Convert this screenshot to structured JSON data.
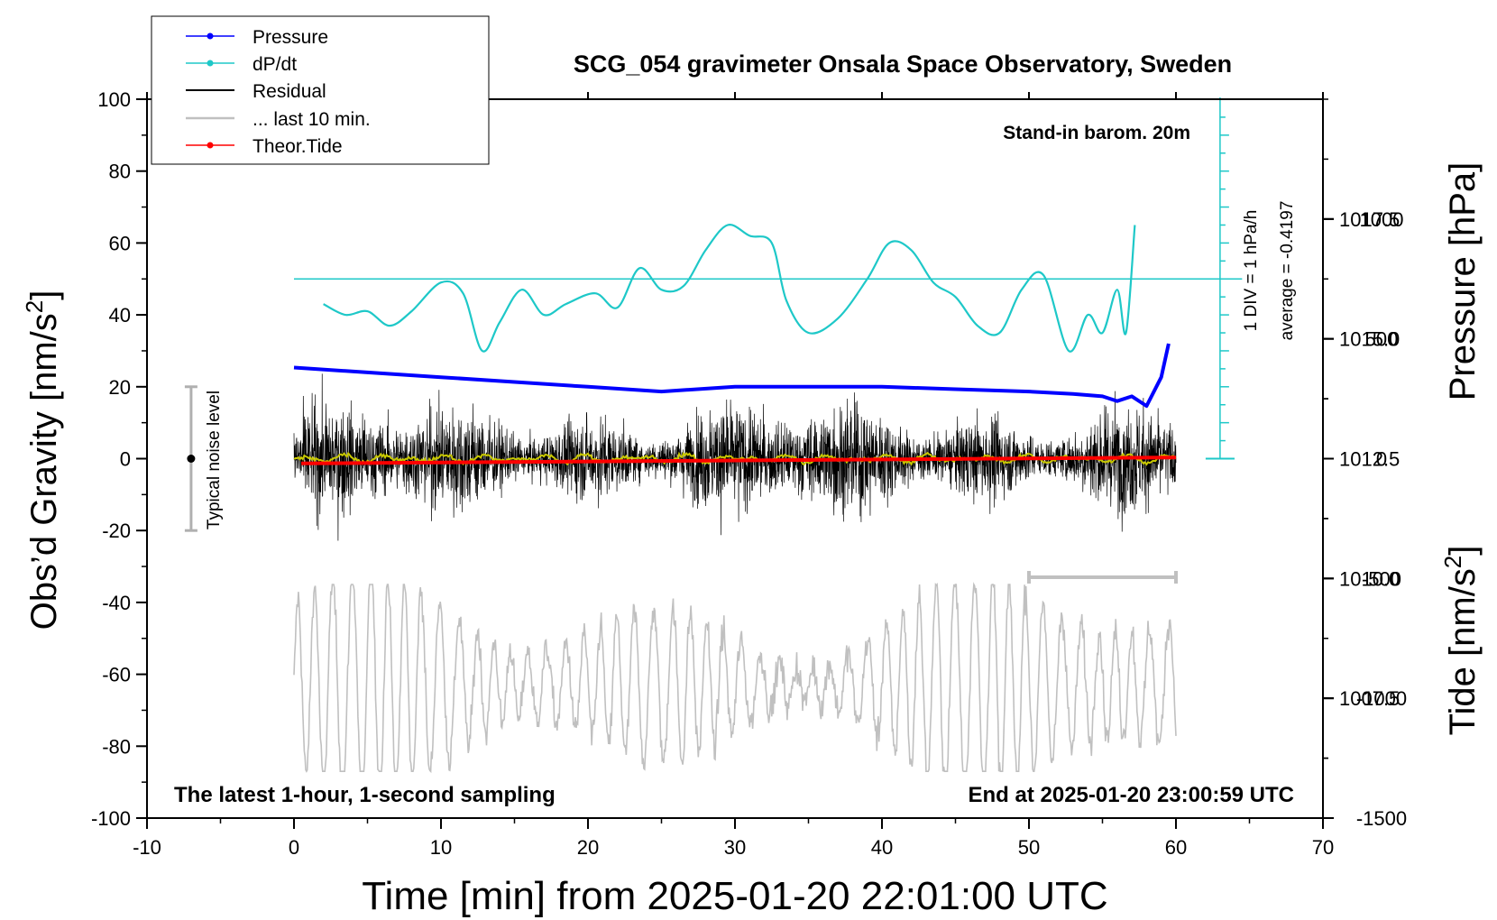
{
  "chart_data": {
    "type": "line",
    "title": "SCG_054 gravimeter Onsala Space Observatory, Sweden",
    "annotations": {
      "barometer": "Stand-in barom. 20m",
      "sampling": "The latest 1-hour, 1-second sampling",
      "end_time": "End at 2025-01-20 23:00:59 UTC",
      "div_label": "1 DIV = 1 hPa/h",
      "average_label": "average = -0.4197",
      "noise_label": "Typical noise level"
    },
    "xaxis": {
      "label": "Time [min] from 2025-01-20 22:01:00 UTC",
      "range": [
        -10,
        70
      ],
      "ticks": [
        -10,
        0,
        10,
        20,
        30,
        40,
        50,
        60,
        70
      ],
      "tick_labels": [
        "-10",
        "0",
        "10",
        "20",
        "30",
        "40",
        "50",
        "60",
        "70"
      ]
    },
    "yaxis_left": {
      "label_main": "Obs’d Gravity [nm/s",
      "label_sup": "2",
      "label_end": "]",
      "range": [
        -100,
        100
      ],
      "ticks": [
        -100,
        -80,
        -60,
        -40,
        -20,
        0,
        20,
        40,
        60,
        80,
        100
      ],
      "tick_labels": [
        "-100",
        "-80",
        "-60",
        "-40",
        "-20",
        "0",
        "20",
        "40",
        "60",
        "80",
        "100"
      ]
    },
    "yaxis_right_pressure": {
      "label": "Pressure [hPa]",
      "range": [
        1005.0,
        1020.0
      ],
      "ticks": [
        1007.5,
        1010.0,
        1012.5,
        1015.0,
        1017.5
      ],
      "tick_labels": [
        "1007.5",
        "1010.0",
        "1012.5",
        "1015.0",
        "1017.5"
      ]
    },
    "yaxis_right_tide": {
      "label_main": "Tide [nm/s",
      "label_sup": "2",
      "label_end": "]",
      "range": [
        -1500,
        1500
      ],
      "ticks": [
        -1500,
        -1000,
        -500,
        0,
        500,
        1000
      ],
      "tick_labels": [
        "-1500",
        "-1000",
        "-500",
        "0",
        "500",
        "1000"
      ]
    },
    "legend": {
      "position": "top-left",
      "entries": [
        "Pressure",
        "dP/dt",
        "Residual",
        "... last 10 min.",
        "Theor.Tide"
      ]
    },
    "colors": {
      "pressure": "#0000ff",
      "dpdt": "#1ec8c8",
      "residual": "#000000",
      "last10": "#c0c0c0",
      "tide": "#ff0000",
      "smoothed": "#c8c800"
    },
    "series": [
      {
        "name": "Pressure",
        "unit": "hPa",
        "x": [
          0,
          5,
          10,
          15,
          20,
          25,
          30,
          35,
          40,
          45,
          50,
          53,
          55,
          56,
          57,
          58,
          59,
          59.5
        ],
        "values": [
          1014.4,
          1014.3,
          1014.2,
          1014.1,
          1014.0,
          1013.9,
          1014.0,
          1014.0,
          1014.0,
          1013.95,
          1013.9,
          1013.85,
          1013.8,
          1013.7,
          1013.8,
          1013.6,
          1014.2,
          1014.9
        ]
      },
      {
        "name": "dP/dt",
        "unit": "DIV (relative to average line at 50 nm/s^2)",
        "x": [
          2,
          3.5,
          5,
          6.5,
          8,
          10,
          11.5,
          12.8,
          14,
          15.5,
          17,
          18.5,
          20.5,
          22,
          23.5,
          25,
          26.5,
          28,
          29.5,
          31,
          32.5,
          33.5,
          35,
          37,
          39,
          40.5,
          42,
          43.5,
          45,
          46.5,
          48,
          49.5,
          51,
          52.7,
          54,
          55,
          56,
          56.6,
          57.2
        ],
        "values": [
          43,
          40,
          41,
          37,
          41,
          49,
          46,
          30,
          38,
          47,
          40,
          43,
          46,
          42,
          53,
          47,
          48,
          58,
          65,
          62,
          60,
          44,
          35,
          39,
          50,
          60,
          58,
          49,
          45,
          37,
          35,
          47,
          51,
          30,
          40,
          35,
          47,
          35,
          65
        ]
      },
      {
        "name": "Theor.Tide",
        "unit": "nm/s^2",
        "x": [
          0.5,
          60
        ],
        "values": [
          -20,
          5
        ]
      }
    ],
    "noise_bar": {
      "center": 0,
      "range": [
        -20,
        20
      ],
      "x": -7
    },
    "last10_marker": {
      "x_range": [
        50,
        60
      ],
      "y": -33
    }
  }
}
